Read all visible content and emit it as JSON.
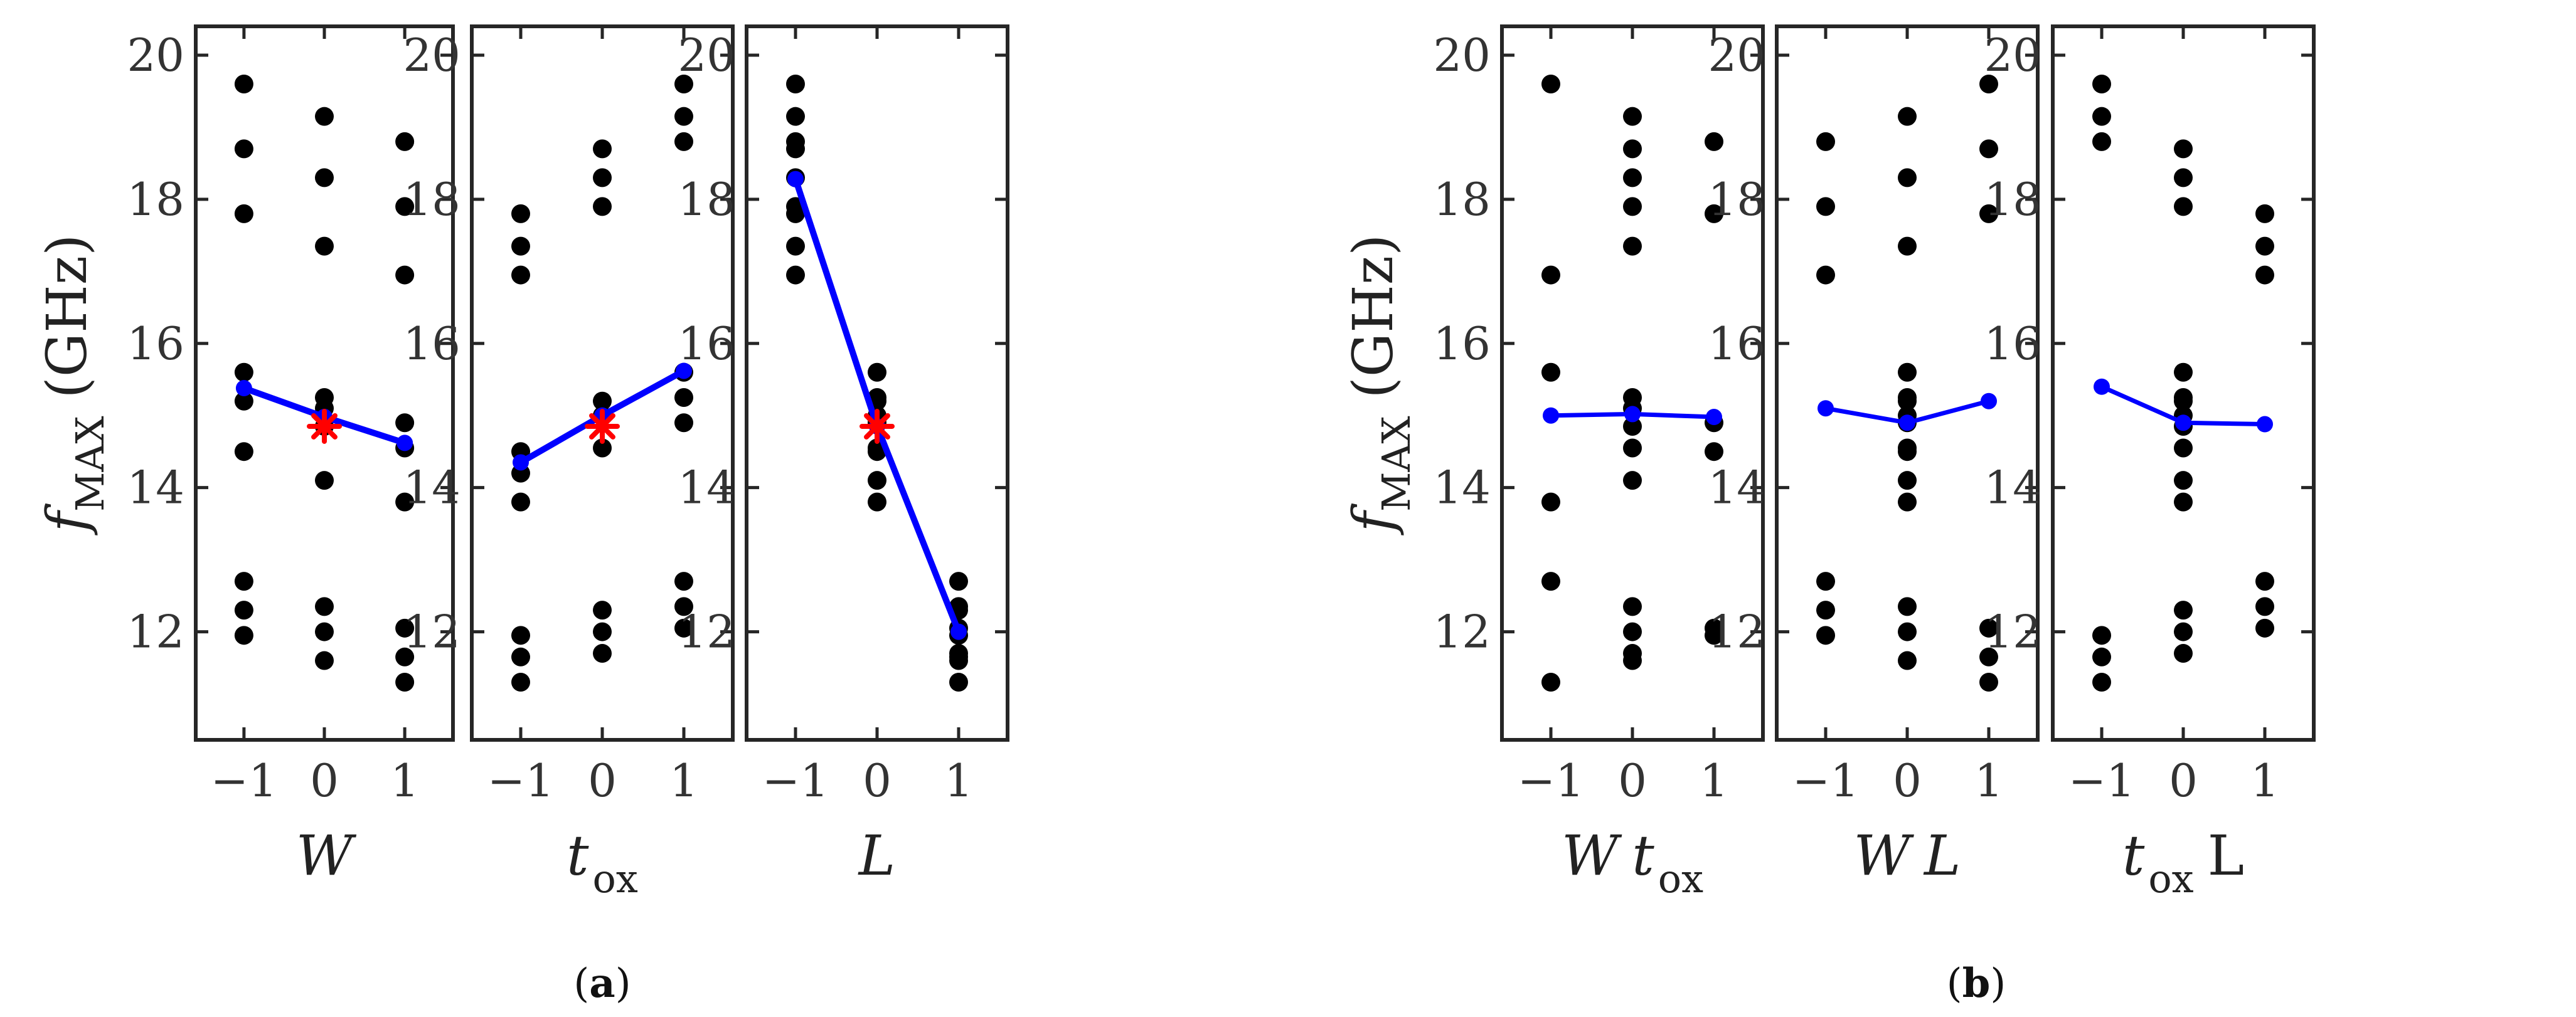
{
  "colors": {
    "points": "#000000",
    "effect_line": "#0000ff",
    "center_marker": "#ff0000",
    "axis": "#262626"
  },
  "captions": [
    {
      "open": "(",
      "letter": "a",
      "close": ")"
    },
    {
      "open": "(",
      "letter": "b",
      "close": ")"
    }
  ],
  "chart_data": [
    {
      "panel": "a",
      "type": "scatter",
      "title": "",
      "xlabel_parts": [
        "W"
      ],
      "ylabel": {
        "var": "f",
        "sub": "MAX",
        "unit": " (GHz)"
      },
      "x_ticks": [
        "−1",
        "0",
        "1"
      ],
      "y_ticks": [
        "12",
        "14",
        "16",
        "18",
        "20"
      ],
      "xlim": [
        -1.6,
        1.6
      ],
      "ylim": [
        10.5,
        20.4
      ],
      "grid": false,
      "points": [
        {
          "x": -1,
          "ys": [
            19.6,
            18.7,
            17.8,
            15.6,
            15.2,
            14.5,
            12.7,
            12.3,
            11.95
          ]
        },
        {
          "x": 0,
          "ys": [
            19.15,
            18.3,
            17.35,
            15.25,
            15.1,
            14.85,
            14.1,
            12.35,
            12.0,
            11.6
          ]
        },
        {
          "x": 1,
          "ys": [
            18.8,
            17.9,
            16.95,
            14.9,
            14.55,
            13.8,
            12.05,
            11.65,
            11.3
          ]
        }
      ],
      "effect_line": {
        "x": [
          -1,
          0,
          1
        ],
        "y": [
          15.38,
          14.98,
          14.62
        ]
      },
      "center_marker": {
        "x": 0,
        "y": 14.85
      }
    },
    {
      "panel": "a",
      "type": "scatter",
      "title": "",
      "xlabel_parts": [
        "t",
        "ox"
      ],
      "x_ticks": [
        "−1",
        "0",
        "1"
      ],
      "y_ticks": [
        "12",
        "14",
        "16",
        "18",
        "20"
      ],
      "xlim": [
        -1.6,
        1.6
      ],
      "ylim": [
        10.5,
        20.4
      ],
      "grid": false,
      "points": [
        {
          "x": -1,
          "ys": [
            17.8,
            17.35,
            16.95,
            14.5,
            14.2,
            13.8,
            11.95,
            11.65,
            11.3
          ]
        },
        {
          "x": 0,
          "ys": [
            18.7,
            18.3,
            17.9,
            15.2,
            15.0,
            14.55,
            12.3,
            12.0,
            11.7
          ]
        },
        {
          "x": 1,
          "ys": [
            19.6,
            19.15,
            18.8,
            15.6,
            15.25,
            14.9,
            12.7,
            12.35,
            12.05
          ]
        }
      ],
      "effect_line": {
        "x": [
          -1,
          0,
          1
        ],
        "y": [
          14.35,
          15.0,
          15.62
        ]
      },
      "center_marker": {
        "x": 0,
        "y": 14.85
      }
    },
    {
      "panel": "a",
      "type": "scatter",
      "title": "",
      "xlabel_parts": [
        "L"
      ],
      "x_ticks": [
        "−1",
        "0",
        "1"
      ],
      "y_ticks": [
        "12",
        "14",
        "16",
        "18",
        "20"
      ],
      "xlim": [
        -1.6,
        1.6
      ],
      "ylim": [
        10.5,
        20.4
      ],
      "grid": false,
      "points": [
        {
          "x": -1,
          "ys": [
            19.6,
            19.15,
            18.8,
            18.7,
            18.3,
            17.9,
            17.8,
            17.35,
            16.95
          ]
        },
        {
          "x": 0,
          "ys": [
            15.6,
            15.25,
            15.2,
            15.0,
            14.9,
            14.55,
            14.5,
            14.1,
            13.8
          ]
        },
        {
          "x": 1,
          "ys": [
            12.7,
            12.35,
            12.3,
            12.05,
            11.95,
            11.7,
            11.65,
            11.6,
            11.3
          ]
        }
      ],
      "effect_line": {
        "x": [
          -1,
          0,
          1
        ],
        "y": [
          18.28,
          14.85,
          12.0
        ]
      },
      "center_marker": {
        "x": 0,
        "y": 14.85
      }
    },
    {
      "panel": "b",
      "type": "scatter",
      "title": "",
      "xlabel_parts": [
        "W",
        "t",
        "ox"
      ],
      "ylabel": {
        "var": "f",
        "sub": "MAX",
        "unit": " (GHz)"
      },
      "x_ticks": [
        "−1",
        "0",
        "1"
      ],
      "y_ticks": [
        "12",
        "14",
        "16",
        "18",
        "20"
      ],
      "xlim": [
        -1.6,
        1.6
      ],
      "ylim": [
        10.5,
        20.4
      ],
      "grid": false,
      "points": [
        {
          "x": -1,
          "ys": [
            19.6,
            16.95,
            15.6,
            13.8,
            12.7,
            11.3
          ]
        },
        {
          "x": 0,
          "ys": [
            19.15,
            18.7,
            18.3,
            17.9,
            17.35,
            15.25,
            15.1,
            14.85,
            14.55,
            14.1,
            12.35,
            12.0,
            11.7,
            11.6
          ]
        },
        {
          "x": 1,
          "ys": [
            18.8,
            17.8,
            14.9,
            14.5,
            12.05,
            11.95
          ]
        }
      ],
      "effect_line": {
        "x": [
          -1,
          0,
          1
        ],
        "y": [
          15.0,
          15.02,
          14.98
        ]
      }
    },
    {
      "panel": "b",
      "type": "scatter",
      "title": "",
      "xlabel_parts": [
        "W",
        "L"
      ],
      "x_ticks": [
        "−1",
        "0",
        "1"
      ],
      "y_ticks": [
        "12",
        "14",
        "16",
        "18",
        "20"
      ],
      "xlim": [
        -1.6,
        1.6
      ],
      "ylim": [
        10.5,
        20.4
      ],
      "grid": false,
      "points": [
        {
          "x": -1,
          "ys": [
            18.8,
            17.9,
            16.95,
            12.7,
            12.3,
            11.95
          ]
        },
        {
          "x": 0,
          "ys": [
            19.15,
            18.3,
            17.35,
            15.6,
            15.25,
            15.2,
            15.0,
            14.9,
            14.55,
            14.5,
            14.1,
            13.8,
            12.35,
            12.0,
            11.6
          ]
        },
        {
          "x": 1,
          "ys": [
            19.6,
            18.7,
            17.8,
            12.05,
            11.65,
            11.3
          ]
        }
      ],
      "effect_line": {
        "x": [
          -1,
          0,
          1
        ],
        "y": [
          15.1,
          14.9,
          15.2
        ]
      }
    },
    {
      "panel": "b",
      "type": "scatter",
      "title": "",
      "xlabel_parts": [
        "t",
        "ox",
        "L"
      ],
      "x_ticks": [
        "−1",
        "0",
        "1"
      ],
      "y_ticks": [
        "12",
        "14",
        "16",
        "18",
        "20"
      ],
      "xlim": [
        -1.6,
        1.6
      ],
      "ylim": [
        10.5,
        20.4
      ],
      "grid": false,
      "points": [
        {
          "x": -1,
          "ys": [
            19.6,
            19.15,
            18.8,
            11.95,
            11.65,
            11.3
          ]
        },
        {
          "x": 0,
          "ys": [
            18.7,
            18.3,
            17.9,
            15.6,
            15.25,
            15.2,
            15.0,
            14.85,
            14.55,
            14.1,
            13.8,
            12.3,
            12.0,
            11.7
          ]
        },
        {
          "x": 1,
          "ys": [
            17.8,
            17.35,
            16.95,
            12.7,
            12.35,
            12.05
          ]
        }
      ],
      "effect_line": {
        "x": [
          -1,
          0,
          1
        ],
        "y": [
          15.4,
          14.9,
          14.88
        ]
      }
    }
  ]
}
